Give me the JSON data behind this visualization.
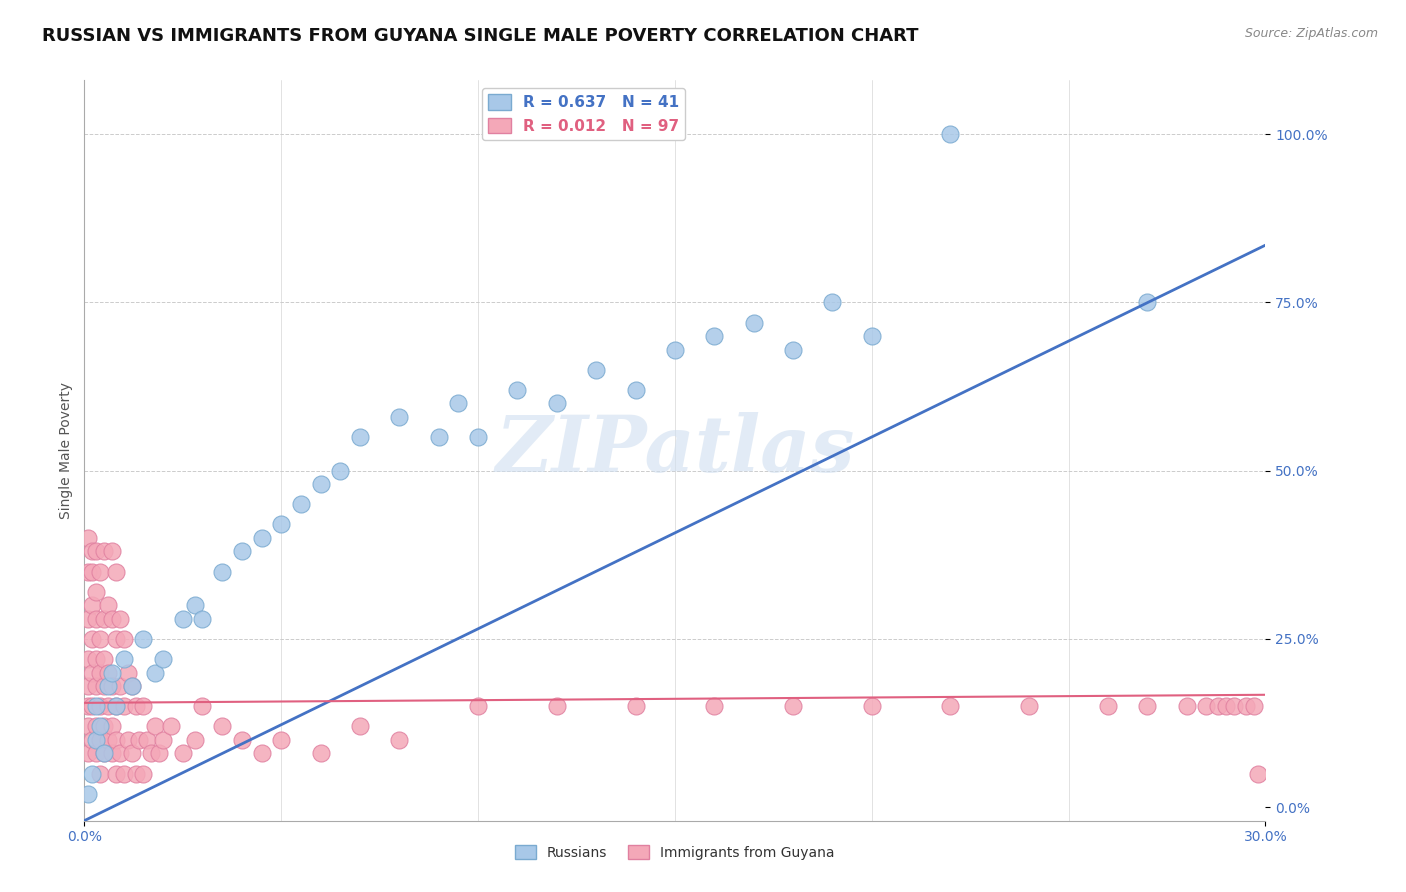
{
  "title": "RUSSIAN VS IMMIGRANTS FROM GUYANA SINGLE MALE POVERTY CORRELATION CHART",
  "source": "Source: ZipAtlas.com",
  "ylabel": "Single Male Poverty",
  "xlim": [
    0.0,
    0.3
  ],
  "ylim": [
    -0.02,
    1.08
  ],
  "ytick_positions": [
    0.0,
    0.25,
    0.5,
    0.75,
    1.0
  ],
  "ytick_labels": [
    "0.0%",
    "25.0%",
    "50.0%",
    "75.0%",
    "100.0%"
  ],
  "xtick_positions": [
    0.0,
    0.3
  ],
  "xtick_labels": [
    "0.0%",
    "30.0%"
  ],
  "series1_label": "Russians",
  "series1_color": "#a8c8e8",
  "series1_border_color": "#7aaad0",
  "series1_R": 0.637,
  "series1_N": 41,
  "series1_x": [
    0.001,
    0.002,
    0.003,
    0.003,
    0.004,
    0.005,
    0.006,
    0.007,
    0.008,
    0.01,
    0.012,
    0.015,
    0.018,
    0.02,
    0.025,
    0.028,
    0.03,
    0.035,
    0.04,
    0.045,
    0.05,
    0.055,
    0.06,
    0.065,
    0.07,
    0.08,
    0.09,
    0.095,
    0.1,
    0.11,
    0.12,
    0.13,
    0.14,
    0.15,
    0.16,
    0.17,
    0.18,
    0.19,
    0.2,
    0.22,
    0.27
  ],
  "series1_y": [
    0.02,
    0.05,
    0.1,
    0.15,
    0.12,
    0.08,
    0.18,
    0.2,
    0.15,
    0.22,
    0.18,
    0.25,
    0.2,
    0.22,
    0.28,
    0.3,
    0.28,
    0.35,
    0.38,
    0.4,
    0.42,
    0.45,
    0.48,
    0.5,
    0.55,
    0.58,
    0.55,
    0.6,
    0.55,
    0.62,
    0.6,
    0.65,
    0.62,
    0.68,
    0.7,
    0.72,
    0.68,
    0.75,
    0.7,
    1.0,
    0.75
  ],
  "series2_label": "Immigrants from Guyana",
  "series2_color": "#f4a8b8",
  "series2_border_color": "#e080a0",
  "series2_R": 0.012,
  "series2_N": 97,
  "series2_x": [
    0.001,
    0.001,
    0.001,
    0.001,
    0.001,
    0.001,
    0.001,
    0.001,
    0.002,
    0.002,
    0.002,
    0.002,
    0.002,
    0.002,
    0.002,
    0.003,
    0.003,
    0.003,
    0.003,
    0.003,
    0.003,
    0.003,
    0.004,
    0.004,
    0.004,
    0.004,
    0.004,
    0.004,
    0.005,
    0.005,
    0.005,
    0.005,
    0.005,
    0.005,
    0.006,
    0.006,
    0.006,
    0.006,
    0.007,
    0.007,
    0.007,
    0.007,
    0.007,
    0.008,
    0.008,
    0.008,
    0.008,
    0.008,
    0.009,
    0.009,
    0.009,
    0.01,
    0.01,
    0.01,
    0.011,
    0.011,
    0.012,
    0.012,
    0.013,
    0.013,
    0.014,
    0.015,
    0.015,
    0.016,
    0.017,
    0.018,
    0.019,
    0.02,
    0.022,
    0.025,
    0.028,
    0.03,
    0.035,
    0.04,
    0.045,
    0.05,
    0.06,
    0.07,
    0.08,
    0.1,
    0.12,
    0.14,
    0.16,
    0.18,
    0.2,
    0.22,
    0.24,
    0.26,
    0.27,
    0.28,
    0.285,
    0.288,
    0.29,
    0.292,
    0.295,
    0.297,
    0.298
  ],
  "series2_y": [
    0.12,
    0.18,
    0.22,
    0.28,
    0.35,
    0.4,
    0.15,
    0.08,
    0.1,
    0.2,
    0.3,
    0.38,
    0.15,
    0.25,
    0.35,
    0.08,
    0.18,
    0.28,
    0.38,
    0.12,
    0.22,
    0.32,
    0.05,
    0.15,
    0.25,
    0.35,
    0.1,
    0.2,
    0.08,
    0.18,
    0.28,
    0.38,
    0.12,
    0.22,
    0.1,
    0.2,
    0.3,
    0.15,
    0.08,
    0.18,
    0.28,
    0.38,
    0.12,
    0.05,
    0.15,
    0.25,
    0.35,
    0.1,
    0.08,
    0.18,
    0.28,
    0.05,
    0.15,
    0.25,
    0.1,
    0.2,
    0.08,
    0.18,
    0.05,
    0.15,
    0.1,
    0.05,
    0.15,
    0.1,
    0.08,
    0.12,
    0.08,
    0.1,
    0.12,
    0.08,
    0.1,
    0.15,
    0.12,
    0.1,
    0.08,
    0.1,
    0.08,
    0.12,
    0.1,
    0.15,
    0.15,
    0.15,
    0.15,
    0.15,
    0.15,
    0.15,
    0.15,
    0.15,
    0.15,
    0.15,
    0.15,
    0.15,
    0.15,
    0.15,
    0.15,
    0.15,
    0.05
  ],
  "line1_color": "#4472c4",
  "line1_intercept": -0.02,
  "line1_slope": 2.85,
  "line2_color": "#e06080",
  "line2_intercept": 0.155,
  "line2_slope": 0.04,
  "watermark_text": "ZIPatlas",
  "background_color": "#ffffff",
  "grid_color": "#cccccc",
  "title_color": "#111111",
  "tick_color": "#4472c4",
  "ylabel_color": "#555555",
  "title_fontsize": 13,
  "axis_label_fontsize": 10,
  "tick_fontsize": 10,
  "legend_fontsize": 11
}
